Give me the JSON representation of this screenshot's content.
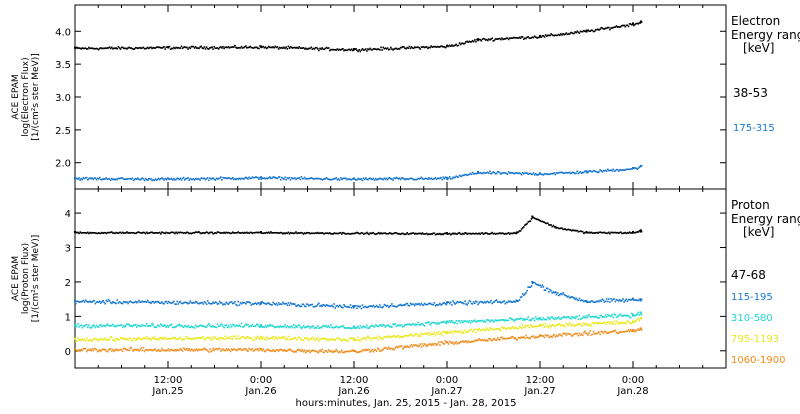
{
  "chart_data": {
    "type": "scatter",
    "xlabel": "hours:minutes, Jan. 25, 2015 - Jan. 28, 2015",
    "x_range": [
      "2015-01-25 00:00",
      "2015-01-28 12:00"
    ],
    "x_ticks": [
      {
        "t": "2015-01-25 12:00",
        "time": "12:00",
        "date": "Jan.25"
      },
      {
        "t": "2015-01-26 00:00",
        "time": "0:00",
        "date": "Jan.26"
      },
      {
        "t": "2015-01-26 12:00",
        "time": "12:00",
        "date": "Jan.26"
      },
      {
        "t": "2015-01-27 00:00",
        "time": "0:00",
        "date": "Jan.27"
      },
      {
        "t": "2015-01-27 12:00",
        "time": "12:00",
        "date": "Jan.27"
      },
      {
        "t": "2015-01-28 00:00",
        "time": "0:00",
        "date": "Jan.28"
      }
    ],
    "panels": [
      {
        "id": "electron",
        "ylabel": [
          "ACE EPAM",
          "log(Electron Flux)",
          "[1/(cm²s ster MeV)]"
        ],
        "legend_title": [
          "Electron",
          "Energy range",
          "[keV]"
        ],
        "ylim": [
          1.6,
          4.4
        ],
        "yticks": [
          "2.0",
          "2.5",
          "3.0",
          "3.5",
          "4.0"
        ],
        "series": [
          {
            "name": "38-53",
            "color": "#000000",
            "x": [
              "2015-01-25 00:00",
              "2015-01-25 12:00",
              "2015-01-26 00:00",
              "2015-01-26 12:00",
              "2015-01-27 00:00",
              "2015-01-27 04:00",
              "2015-01-27 12:00",
              "2015-01-27 18:00",
              "2015-01-28 00:00",
              "2015-01-28 01:00"
            ],
            "y": [
              3.75,
              3.76,
              3.77,
              3.73,
              3.78,
              3.88,
              3.93,
              4.01,
              4.12,
              4.15
            ]
          },
          {
            "name": "175-315",
            "color": "#1878d0",
            "x": [
              "2015-01-25 00:00",
              "2015-01-25 12:00",
              "2015-01-26 00:00",
              "2015-01-26 12:00",
              "2015-01-27 00:00",
              "2015-01-27 04:00",
              "2015-01-27 12:00",
              "2015-01-27 18:00",
              "2015-01-28 00:00",
              "2015-01-28 01:00"
            ],
            "y": [
              1.77,
              1.76,
              1.78,
              1.76,
              1.77,
              1.86,
              1.84,
              1.87,
              1.92,
              1.95
            ]
          }
        ]
      },
      {
        "id": "proton",
        "ylabel": [
          "ACE EPAM",
          "log(Proton Flux)",
          "[1/(cm²s ster MeV)]"
        ],
        "legend_title": [
          "Proton",
          "Energy range",
          "[keV]"
        ],
        "ylim": [
          -0.5,
          4.7
        ],
        "yticks": [
          "0",
          "1",
          "2",
          "3",
          "4"
        ],
        "series": [
          {
            "name": "47-68",
            "color": "#000000",
            "x": [
              "2015-01-25 00:00",
              "2015-01-26 00:00",
              "2015-01-27 00:00",
              "2015-01-27 09:00",
              "2015-01-27 11:00",
              "2015-01-27 14:00",
              "2015-01-27 18:00",
              "2015-01-28 00:00",
              "2015-01-28 01:00"
            ],
            "y": [
              3.45,
              3.45,
              3.42,
              3.44,
              3.9,
              3.6,
              3.45,
              3.45,
              3.5
            ]
          },
          {
            "name": "115-195",
            "color": "#1878d0",
            "x": [
              "2015-01-25 00:00",
              "2015-01-26 00:00",
              "2015-01-26 12:00",
              "2015-01-27 00:00",
              "2015-01-27 09:00",
              "2015-01-27 11:00",
              "2015-01-27 14:00",
              "2015-01-27 18:00",
              "2015-01-28 00:00",
              "2015-01-28 01:00"
            ],
            "y": [
              1.45,
              1.4,
              1.3,
              1.4,
              1.45,
              2.0,
              1.7,
              1.45,
              1.5,
              1.5
            ]
          },
          {
            "name": "310-580",
            "color": "#20d8d0",
            "x": [
              "2015-01-25 00:00",
              "2015-01-26 00:00",
              "2015-01-26 12:00",
              "2015-01-27 00:00",
              "2015-01-27 12:00",
              "2015-01-28 00:00",
              "2015-01-28 01:00"
            ],
            "y": [
              0.75,
              0.75,
              0.7,
              0.85,
              0.95,
              1.05,
              1.1
            ]
          },
          {
            "name": "795-1193",
            "color": "#e8e820",
            "x": [
              "2015-01-25 00:00",
              "2015-01-26 00:00",
              "2015-01-26 12:00",
              "2015-01-27 00:00",
              "2015-01-27 12:00",
              "2015-01-28 00:00",
              "2015-01-28 01:00"
            ],
            "y": [
              0.35,
              0.4,
              0.35,
              0.55,
              0.75,
              0.85,
              0.95
            ]
          },
          {
            "name": "1060-1900",
            "color": "#f08c1c",
            "x": [
              "2015-01-25 00:00",
              "2015-01-26 00:00",
              "2015-01-26 12:00",
              "2015-01-27 00:00",
              "2015-01-27 12:00",
              "2015-01-28 00:00",
              "2015-01-28 01:00"
            ],
            "y": [
              0.05,
              0.05,
              0.0,
              0.25,
              0.45,
              0.6,
              0.65
            ]
          }
        ]
      }
    ]
  }
}
